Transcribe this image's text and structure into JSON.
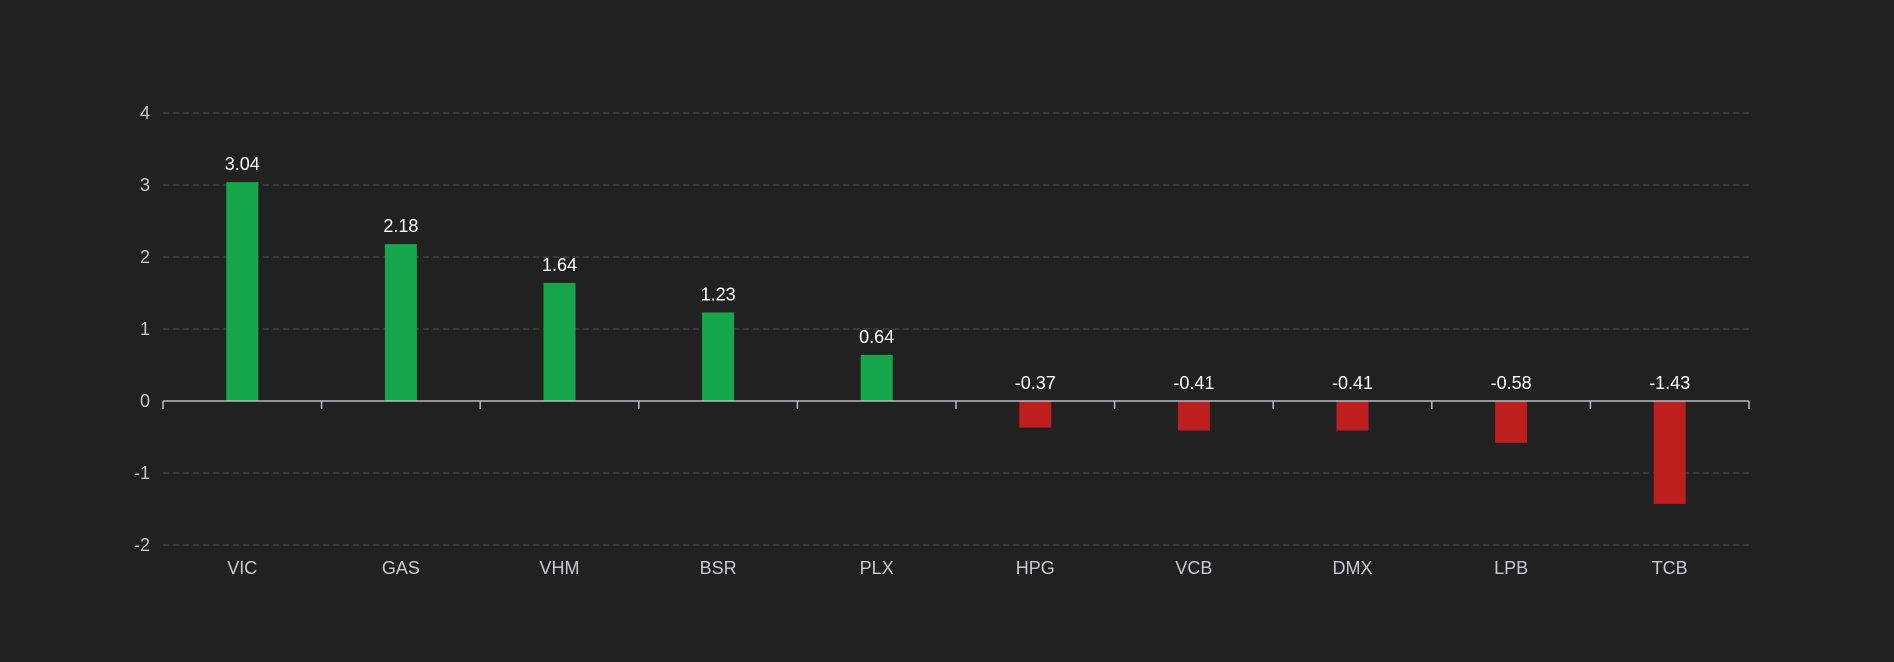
{
  "chart_data": {
    "type": "bar",
    "categories": [
      "VIC",
      "GAS",
      "VHM",
      "BSR",
      "PLX",
      "HPG",
      "VCB",
      "DMX",
      "LPB",
      "TCB"
    ],
    "values": [
      3.04,
      2.18,
      1.64,
      1.23,
      0.64,
      -0.37,
      -0.41,
      -0.41,
      -0.58,
      -1.43
    ],
    "labels": [
      "3.04",
      "2.18",
      "1.64",
      "1.23",
      "0.64",
      "-0.37",
      "-0.41",
      "-0.41",
      "-0.58",
      "-1.43"
    ],
    "ylim": [
      -2,
      4
    ],
    "yticks": [
      4,
      3,
      2,
      1,
      0,
      -1,
      -2
    ],
    "title": "",
    "xlabel": "",
    "ylabel": "",
    "grid": true,
    "colors": {
      "positive": "#16a64c",
      "negative": "#bd1e1e",
      "grid": "#4a4a4a",
      "axis": "#b9bcc8",
      "background": "#212121"
    }
  }
}
